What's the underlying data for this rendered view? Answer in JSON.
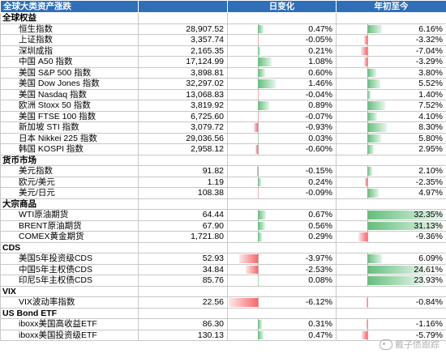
{
  "header": {
    "title": "全球大类资产涨跌",
    "col_daily": "日变化",
    "col_ytd": "年初至今"
  },
  "colors": {
    "header_bg": "#2e6fb7",
    "positive_bar": "#63be7b",
    "negative_bar": "#f8696b"
  },
  "scale": {
    "daily_max_abs": 6.12,
    "ytd_max_abs": 32.35
  },
  "sections": [
    {
      "title": "全球权益",
      "rows": [
        {
          "name": "恒生指数",
          "value": "28,907.52",
          "daily": "0.47%",
          "daily_num": 0.47,
          "ytd": "6.16%",
          "ytd_num": 6.16
        },
        {
          "name": "上证指数",
          "value": "3,357.74",
          "daily": "-0.05%",
          "daily_num": -0.05,
          "ytd": "-3.32%",
          "ytd_num": -3.32
        },
        {
          "name": "深圳成指",
          "value": "2,165.35",
          "daily": "0.21%",
          "daily_num": 0.21,
          "ytd": "-7.04%",
          "ytd_num": -7.04
        },
        {
          "name": "中国 A50 指数",
          "value": "17,124.99",
          "daily": "1.08%",
          "daily_num": 1.08,
          "ytd": "-3.29%",
          "ytd_num": -3.29
        },
        {
          "name": "美国 S&P 500 指数",
          "value": "3,898.81",
          "daily": "0.60%",
          "daily_num": 0.6,
          "ytd": "3.80%",
          "ytd_num": 3.8
        },
        {
          "name": "美国 Dow Jones 指数",
          "value": "32,297.02",
          "daily": "1.46%",
          "daily_num": 1.46,
          "ytd": "5.52%",
          "ytd_num": 5.52
        },
        {
          "name": "美国 Nasdaq 指数",
          "value": "13,068.83",
          "daily": "-0.04%",
          "daily_num": -0.04,
          "ytd": "1.40%",
          "ytd_num": 1.4
        },
        {
          "name": "欧洲 Stoxx 50 指数",
          "value": "3,819.92",
          "daily": "0.89%",
          "daily_num": 0.89,
          "ytd": "7.52%",
          "ytd_num": 7.52
        },
        {
          "name": "美国 FTSE 100 指数",
          "value": "6,725.60",
          "daily": "-0.07%",
          "daily_num": -0.07,
          "ytd": "4.10%",
          "ytd_num": 4.1
        },
        {
          "name": "新加坡 STI 指数",
          "value": "3,079.72",
          "daily": "-0.93%",
          "daily_num": -0.93,
          "ytd": "8.30%",
          "ytd_num": 8.3
        },
        {
          "name": "日本 Nikkei 225 指数",
          "value": "29,036.56",
          "daily": "0.03%",
          "daily_num": 0.03,
          "ytd": "5.80%",
          "ytd_num": 5.8
        },
        {
          "name": "韩国 KOSPI 指数",
          "value": "2,958.12",
          "daily": "-0.60%",
          "daily_num": -0.6,
          "ytd": "2.95%",
          "ytd_num": 2.95
        }
      ]
    },
    {
      "title": "货币市场",
      "rows": [
        {
          "name": "美元指数",
          "value": "91.82",
          "daily": "-0.15%",
          "daily_num": -0.15,
          "ytd": "2.10%",
          "ytd_num": 2.1
        },
        {
          "name": "欧元/美元",
          "value": "1.19",
          "daily": "0.24%",
          "daily_num": 0.24,
          "ytd": "-2.35%",
          "ytd_num": -2.35
        },
        {
          "name": "美元/日元",
          "value": "108.38",
          "daily": "-0.09%",
          "daily_num": -0.09,
          "ytd": "4.97%",
          "ytd_num": 4.97
        }
      ]
    },
    {
      "title": "大宗商品",
      "rows": [
        {
          "name": "WTI原油期货",
          "value": "64.44",
          "daily": "0.67%",
          "daily_num": 0.67,
          "ytd": "32.35%",
          "ytd_num": 32.35
        },
        {
          "name": "BRENT原油期货",
          "value": "67.90",
          "daily": "0.56%",
          "daily_num": 0.56,
          "ytd": "31.13%",
          "ytd_num": 31.13
        },
        {
          "name": "COMEX黄金期货",
          "value": "1,721.80",
          "daily": "0.29%",
          "daily_num": 0.29,
          "ytd": "-9.36%",
          "ytd_num": -9.36
        }
      ]
    },
    {
      "title": "CDS",
      "rows": [
        {
          "name": "美国5年投资级CDS",
          "value": "52.93",
          "daily": "-3.97%",
          "daily_num": -3.97,
          "ytd": "6.09%",
          "ytd_num": 6.09
        },
        {
          "name": "中国5年主权债CDS",
          "value": "34.84",
          "daily": "-2.53%",
          "daily_num": -2.53,
          "ytd": "24.61%",
          "ytd_num": 24.61
        },
        {
          "name": "印尼5年主权债CDS",
          "value": "85.76",
          "daily": "0.08%",
          "daily_num": 0.08,
          "ytd": "23.93%",
          "ytd_num": 23.93
        }
      ]
    },
    {
      "title": "VIX",
      "rows": [
        {
          "name": "VIX波动率指数",
          "value": "22.56",
          "daily": "-6.12%",
          "daily_num": -6.12,
          "ytd": "-0.84%",
          "ytd_num": -0.84
        }
      ]
    },
    {
      "title": "US Bond ETF",
      "rows": [
        {
          "name": "iboxx美国高收益ETF",
          "value": "86.30",
          "daily": "0.31%",
          "daily_num": 0.31,
          "ytd": "-1.16%",
          "ytd_num": -1.16
        },
        {
          "name": "iboxx美国投资级ETF",
          "value": "130.13",
          "daily": "0.47%",
          "daily_num": 0.47,
          "ytd": "-5.79%",
          "ytd_num": -5.79
        }
      ]
    }
  ],
  "watermark": {
    "text": "戴子债跟踪",
    "icon": "wechat-icon"
  }
}
